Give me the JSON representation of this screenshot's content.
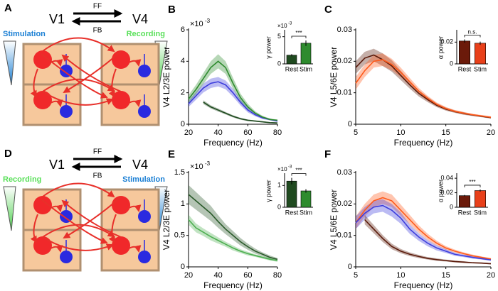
{
  "diagrams": [
    {
      "letter": "A",
      "left_area": "V1",
      "right_area": "V4",
      "ff": "FF",
      "fb": "FB",
      "left_label": "Stimulation",
      "right_label": "Recording"
    },
    {
      "letter": "D",
      "left_area": "V1",
      "right_area": "V4",
      "ff": "FF",
      "fb": "FB",
      "left_label": "Recording",
      "right_label": "Stimulation"
    }
  ],
  "chart_data": [
    {
      "type": "line",
      "panel": "B",
      "y_label": "V4 L2/3E power",
      "x_label": "Frequency (Hz)",
      "y_multiplier": {
        "base": "×10",
        "exponent": "-3"
      },
      "x": [
        20,
        25,
        30,
        35,
        40,
        45,
        50,
        55,
        60,
        65,
        70,
        75,
        80
      ],
      "xlim": [
        20,
        80
      ],
      "xticks": [
        20,
        40,
        60,
        80
      ],
      "ylim": [
        0,
        6
      ],
      "yticks": [
        0,
        2,
        4,
        6
      ],
      "series": [
        {
          "color": "#1f4a1f",
          "values": [
            null,
            null,
            1.4,
            1.1,
            0.9,
            0.7,
            0.5,
            0.35,
            0.25,
            0.2,
            0.15,
            0.1,
            0.08
          ],
          "errors": [
            null,
            null,
            0.12,
            0.1,
            0.1,
            0.08,
            0.07,
            0.06,
            0.05,
            0.04,
            0.04,
            0.03,
            0.03
          ]
        },
        {
          "color": "#3c3cdc",
          "values": [
            1.3,
            1.8,
            2.3,
            2.6,
            2.7,
            2.5,
            2.0,
            1.4,
            0.9,
            0.6,
            0.4,
            0.3,
            0.2
          ],
          "errors": [
            0.2,
            0.25,
            0.28,
            0.3,
            0.3,
            0.28,
            0.25,
            0.2,
            0.15,
            0.1,
            0.08,
            0.06,
            0.05
          ]
        },
        {
          "color": "#2e8b2e",
          "values": [
            1.6,
            2.2,
            2.9,
            3.6,
            4.0,
            3.6,
            2.6,
            1.7,
            1.1,
            0.7,
            0.45,
            0.3,
            0.25
          ],
          "errors": [
            0.25,
            0.3,
            0.35,
            0.4,
            0.45,
            0.4,
            0.35,
            0.25,
            0.2,
            0.12,
            0.08,
            0.06,
            0.05
          ]
        }
      ],
      "inset": {
        "type": "bar",
        "y_label": "γ power",
        "y_multiplier": {
          "base": "×10",
          "exponent": "-3"
        },
        "categories": [
          "Rest",
          "Stim"
        ],
        "values": [
          1.6,
          3.8
        ],
        "errors": [
          0.2,
          0.5
        ],
        "colors": [
          "#1f4a1f",
          "#2e8b2e"
        ],
        "ylim": [
          0,
          6
        ],
        "yticks": [
          0,
          5
        ],
        "significance": "***"
      }
    },
    {
      "type": "line",
      "panel": "C",
      "y_label": "V4 L5/6E power",
      "x_label": "Frequency (Hz)",
      "x": [
        5,
        6,
        7,
        8,
        9,
        10,
        11,
        12,
        13,
        14,
        15,
        16,
        17,
        18,
        19,
        20
      ],
      "xlim": [
        5,
        20
      ],
      "xticks": [
        5,
        10,
        15,
        20
      ],
      "ylim": [
        0,
        0.03
      ],
      "yticks": [
        0,
        0.01,
        0.02,
        0.03
      ],
      "series": [
        {
          "color": "#5a1a0a",
          "values": [
            0.018,
            0.021,
            0.022,
            0.0205,
            0.0185,
            0.0155,
            0.0125,
            0.0098,
            0.0078,
            0.006,
            0.0048,
            0.004,
            0.0034,
            0.0029,
            0.0025,
            0.0021
          ],
          "errors": [
            0.002,
            0.002,
            0.002,
            0.002,
            0.0018,
            0.0015,
            0.0012,
            0.001,
            0.0008,
            0.0006,
            0.0005,
            0.0004,
            0.0004,
            0.0003,
            0.0003,
            0.0003
          ]
        },
        {
          "color": "#ff5a1a",
          "values": [
            0.013,
            0.017,
            0.02,
            0.0205,
            0.019,
            0.0165,
            0.0135,
            0.0105,
            0.0082,
            0.0063,
            0.005,
            0.0041,
            0.0035,
            0.003,
            0.0026,
            0.0022
          ],
          "errors": [
            0.002,
            0.002,
            0.002,
            0.002,
            0.0018,
            0.0015,
            0.0012,
            0.001,
            0.0008,
            0.0006,
            0.0005,
            0.0004,
            0.0004,
            0.0003,
            0.0003,
            0.0003
          ]
        }
      ],
      "inset": {
        "type": "bar",
        "y_label": "α power",
        "categories": [
          "Rest",
          "Stim"
        ],
        "values": [
          0.021,
          0.019
        ],
        "errors": [
          0.0015,
          0.0015
        ],
        "colors": [
          "#6b1a0a",
          "#e8401a"
        ],
        "ylim": [
          0,
          0.03
        ],
        "yticks": [
          0,
          0.02
        ],
        "significance": "n.s."
      }
    },
    {
      "type": "line",
      "panel": "E",
      "y_label": "V4 L2/3E power",
      "x_label": "Frequency (Hz)",
      "y_multiplier": {
        "base": "×10",
        "exponent": "-3"
      },
      "x": [
        20,
        25,
        30,
        35,
        40,
        45,
        50,
        55,
        60,
        65,
        70,
        75,
        80
      ],
      "xlim": [
        20,
        80
      ],
      "xticks": [
        20,
        40,
        60,
        80
      ],
      "ylim": [
        0,
        1.5
      ],
      "yticks": [
        0,
        0.5,
        1,
        1.5
      ],
      "series": [
        {
          "color": "#2a5a2a",
          "values": [
            1.15,
            1.05,
            0.95,
            0.85,
            0.72,
            0.6,
            0.5,
            0.4,
            0.32,
            0.25,
            0.2,
            0.15,
            0.12
          ],
          "errors": [
            0.15,
            0.14,
            0.13,
            0.12,
            0.1,
            0.08,
            0.07,
            0.06,
            0.05,
            0.04,
            0.03,
            0.03,
            0.02
          ]
        },
        {
          "color": "#4caf50",
          "values": [
            0.75,
            0.62,
            0.55,
            0.48,
            0.42,
            0.36,
            0.3,
            0.25,
            0.21,
            0.18,
            0.15,
            0.12,
            0.1
          ],
          "errors": [
            0.08,
            0.07,
            0.06,
            0.06,
            0.05,
            0.04,
            0.04,
            0.03,
            0.03,
            0.02,
            0.02,
            0.02,
            0.02
          ]
        }
      ],
      "inset": {
        "type": "bar",
        "y_label": "γ power",
        "y_multiplier": {
          "base": "×10",
          "exponent": "-3"
        },
        "categories": [
          "Rest",
          "Stim"
        ],
        "values": [
          1.2,
          0.75
        ],
        "errors": [
          0.15,
          0.08
        ],
        "colors": [
          "#1f4a1f",
          "#2e8b2e"
        ],
        "ylim": [
          0,
          1.5
        ],
        "yticks": [
          0,
          1
        ],
        "significance": "***"
      }
    },
    {
      "type": "line",
      "panel": "F",
      "y_label": "V4 L5/6E power",
      "x_label": "Frequency (Hz)",
      "x": [
        5,
        6,
        7,
        8,
        9,
        10,
        11,
        12,
        13,
        14,
        15,
        16,
        17,
        18,
        19,
        20
      ],
      "xlim": [
        5,
        20
      ],
      "xticks": [
        5,
        10,
        15,
        20
      ],
      "ylim": [
        0,
        0.03
      ],
      "yticks": [
        0,
        0.01,
        0.02,
        0.03
      ],
      "series": [
        {
          "color": "#ff5a1a",
          "values": [
            0.014,
            0.018,
            0.021,
            0.022,
            0.021,
            0.018,
            0.015,
            0.012,
            0.0095,
            0.0075,
            0.006,
            0.005,
            0.0042,
            0.0035,
            0.003,
            0.0025
          ],
          "errors": [
            0.002,
            0.002,
            0.002,
            0.002,
            0.002,
            0.0018,
            0.0015,
            0.0012,
            0.001,
            0.0008,
            0.0006,
            0.0005,
            0.0004,
            0.0004,
            0.0003,
            0.0003
          ]
        },
        {
          "color": "#3c3cdc",
          "values": [
            0.014,
            0.017,
            0.019,
            0.0195,
            0.018,
            0.0155,
            0.012,
            0.0095,
            0.0075,
            0.006,
            0.005,
            0.004,
            0.0035,
            0.003,
            0.0026,
            0.0022
          ],
          "errors": [
            0.002,
            0.002,
            0.002,
            0.002,
            0.002,
            0.0018,
            0.0015,
            0.0012,
            0.001,
            0.0008,
            0.0006,
            0.0005,
            0.0004,
            0.0004,
            0.0003,
            0.0003
          ]
        },
        {
          "color": "#5a1a0a",
          "values": [
            null,
            0.015,
            0.012,
            0.009,
            0.0065,
            0.005,
            0.004,
            0.0033,
            0.0027,
            0.0023,
            0.002,
            0.0017,
            0.0015,
            0.0013,
            0.0012,
            0.001
          ],
          "errors": [
            null,
            0.0015,
            0.0013,
            0.0011,
            0.0009,
            0.0007,
            0.0006,
            0.0005,
            0.0004,
            0.0004,
            0.0003,
            0.0003,
            0.0003,
            0.0002,
            0.0002,
            0.0002
          ]
        }
      ],
      "inset": {
        "type": "bar",
        "y_label": "α power",
        "categories": [
          "Rest",
          "Stim"
        ],
        "values": [
          0.016,
          0.023
        ],
        "errors": [
          0.001,
          0.0015
        ],
        "colors": [
          "#6b1a0a",
          "#e8401a"
        ],
        "ylim": [
          0,
          0.045
        ],
        "yticks": [
          0,
          0.02,
          0.04
        ],
        "significance": "***"
      }
    }
  ]
}
